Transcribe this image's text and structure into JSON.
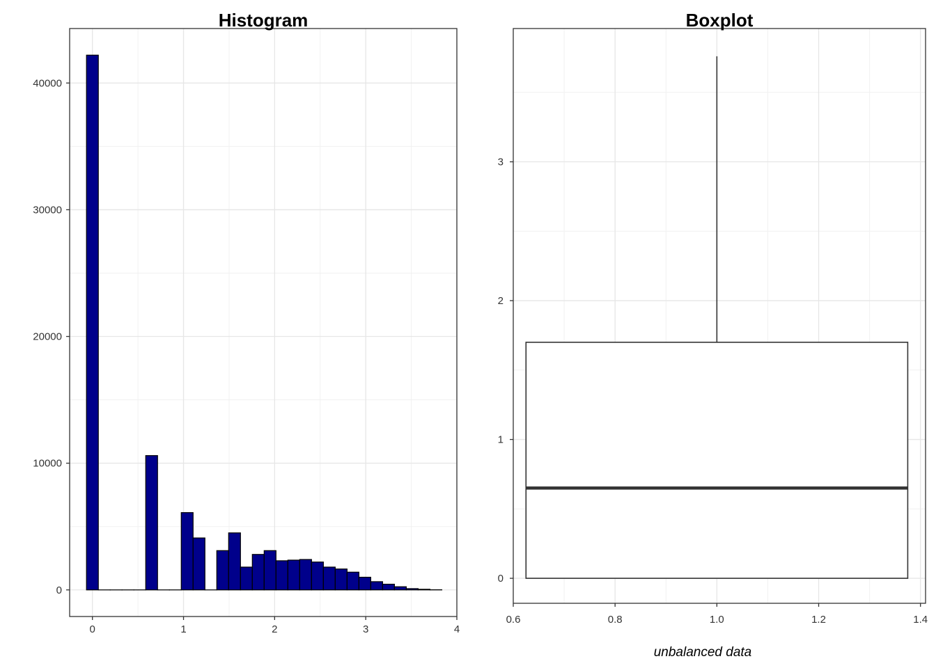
{
  "chart_data": [
    {
      "type": "bar",
      "title": "Histogram",
      "xlabel": "",
      "ylabel": "",
      "xlim": [
        -0.25,
        4.0
      ],
      "ylim": [
        -2100,
        44300
      ],
      "bin_width": 0.13,
      "bins": [
        {
          "x": 0.0,
          "count": 42200
        },
        {
          "x": 0.13,
          "count": 0
        },
        {
          "x": 0.26,
          "count": 0
        },
        {
          "x": 0.39,
          "count": 0
        },
        {
          "x": 0.52,
          "count": 0
        },
        {
          "x": 0.65,
          "count": 10600
        },
        {
          "x": 0.78,
          "count": 0
        },
        {
          "x": 0.91,
          "count": 0
        },
        {
          "x": 1.04,
          "count": 6100
        },
        {
          "x": 1.17,
          "count": 4100
        },
        {
          "x": 1.3,
          "count": 0
        },
        {
          "x": 1.43,
          "count": 3100
        },
        {
          "x": 1.56,
          "count": 4500
        },
        {
          "x": 1.69,
          "count": 1800
        },
        {
          "x": 1.82,
          "count": 2800
        },
        {
          "x": 1.95,
          "count": 3100
        },
        {
          "x": 2.08,
          "count": 2300
        },
        {
          "x": 2.21,
          "count": 2350
        },
        {
          "x": 2.34,
          "count": 2400
        },
        {
          "x": 2.47,
          "count": 2200
        },
        {
          "x": 2.6,
          "count": 1800
        },
        {
          "x": 2.73,
          "count": 1650
        },
        {
          "x": 2.86,
          "count": 1400
        },
        {
          "x": 2.99,
          "count": 1000
        },
        {
          "x": 3.12,
          "count": 650
        },
        {
          "x": 3.25,
          "count": 450
        },
        {
          "x": 3.38,
          "count": 250
        },
        {
          "x": 3.51,
          "count": 100
        },
        {
          "x": 3.64,
          "count": 50
        },
        {
          "x": 3.77,
          "count": 10
        }
      ],
      "x_ticks": [
        0,
        1,
        2,
        3,
        4
      ],
      "x_tick_labels": [
        "0",
        "1",
        "2",
        "3",
        "4"
      ],
      "y_ticks": [
        0,
        10000,
        20000,
        30000,
        40000
      ],
      "y_tick_labels": [
        "0",
        "10000",
        "20000",
        "30000",
        "40000"
      ],
      "fill_color": "#00008B",
      "grid": true
    },
    {
      "type": "boxplot",
      "title": "Boxplot",
      "xlabel": "unbalanced data",
      "ylabel": "",
      "xlim": [
        0.6,
        1.41
      ],
      "ylim": [
        -0.18,
        3.96
      ],
      "box": {
        "x": 1.0,
        "width": 0.75,
        "min": 0.0,
        "q1": 0.0,
        "median": 0.65,
        "q3": 1.7,
        "max": 3.76
      },
      "x_ticks": [
        0.6,
        0.8,
        1.0,
        1.2,
        1.4
      ],
      "x_tick_labels": [
        "0.6",
        "0.8",
        "1.0",
        "1.2",
        "1.4"
      ],
      "y_ticks": [
        0,
        1,
        2,
        3
      ],
      "y_tick_labels": [
        "0",
        "1",
        "2",
        "3"
      ],
      "grid": true
    }
  ]
}
